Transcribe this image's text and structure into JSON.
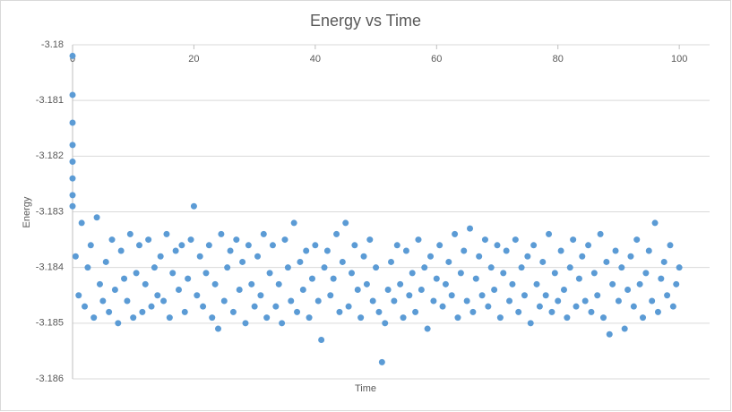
{
  "chart_data": {
    "type": "scatter",
    "title": "Energy vs Time",
    "x_label": "Time",
    "y_label": "Energy",
    "xlim": [
      0,
      105
    ],
    "xticks": [
      0,
      20,
      40,
      60,
      80,
      100
    ],
    "ylim": [
      -3.186,
      -3.18
    ],
    "yticks": [
      -3.18,
      -3.181,
      -3.182,
      -3.183,
      -3.184,
      -3.185,
      -3.186
    ],
    "grid": true,
    "series": [
      {
        "name": "Energy",
        "color": "#5b9bd5",
        "x": [
          0,
          0,
          0,
          0,
          0,
          0,
          0,
          0,
          0.5,
          1,
          1.5,
          2,
          2.5,
          3,
          3.5,
          4,
          4.5,
          5,
          5.5,
          6,
          6.5,
          7,
          7.5,
          8,
          8.5,
          9,
          9.5,
          10,
          10.5,
          11,
          11.5,
          12,
          12.5,
          13,
          13.5,
          14,
          14.5,
          15,
          15.5,
          16,
          16.5,
          17,
          17.5,
          18,
          18.5,
          19,
          19.5,
          20,
          20.5,
          21,
          21.5,
          22,
          22.5,
          23,
          23.5,
          24,
          24.5,
          25,
          25.5,
          26,
          26.5,
          27,
          27.5,
          28,
          28.5,
          29,
          29.5,
          30,
          30.5,
          31,
          31.5,
          32,
          32.5,
          33,
          33.5,
          34,
          34.5,
          35,
          35.5,
          36,
          36.5,
          37,
          37.5,
          38,
          38.5,
          39,
          39.5,
          40,
          40.5,
          41,
          41.5,
          42,
          42.5,
          43,
          43.5,
          44,
          44.5,
          45,
          45.5,
          46,
          46.5,
          47,
          47.5,
          48,
          48.5,
          49,
          49.5,
          50,
          50.5,
          51,
          51.5,
          52,
          52.5,
          53,
          53.5,
          54,
          54.5,
          55,
          55.5,
          56,
          56.5,
          57,
          57.5,
          58,
          58.5,
          59,
          59.5,
          60,
          60.5,
          61,
          61.5,
          62,
          62.5,
          63,
          63.5,
          64,
          64.5,
          65,
          65.5,
          66,
          66.5,
          67,
          67.5,
          68,
          68.5,
          69,
          69.5,
          70,
          70.5,
          71,
          71.5,
          72,
          72.5,
          73,
          73.5,
          74,
          74.5,
          75,
          75.5,
          76,
          76.5,
          77,
          77.5,
          78,
          78.5,
          79,
          79.5,
          80,
          80.5,
          81,
          81.5,
          82,
          82.5,
          83,
          83.5,
          84,
          84.5,
          85,
          85.5,
          86,
          86.5,
          87,
          87.5,
          88,
          88.5,
          89,
          89.5,
          90,
          90.5,
          91,
          91.5,
          92,
          92.5,
          93,
          93.5,
          94,
          94.5,
          95,
          95.5,
          96,
          96.5,
          97,
          97.5,
          98,
          98.5,
          99,
          99.5,
          100
        ],
        "values": [
          -3.1802,
          -3.1809,
          -3.1814,
          -3.1818,
          -3.1821,
          -3.1824,
          -3.1827,
          -3.1829,
          -3.1838,
          -3.1845,
          -3.1832,
          -3.1847,
          -3.184,
          -3.1836,
          -3.1849,
          -3.1831,
          -3.1843,
          -3.1846,
          -3.1839,
          -3.1848,
          -3.1835,
          -3.1844,
          -3.185,
          -3.1837,
          -3.1842,
          -3.1846,
          -3.1834,
          -3.1849,
          -3.1841,
          -3.1836,
          -3.1848,
          -3.1843,
          -3.1835,
          -3.1847,
          -3.184,
          -3.1845,
          -3.1838,
          -3.1846,
          -3.1834,
          -3.1849,
          -3.1841,
          -3.1837,
          -3.1844,
          -3.1836,
          -3.1848,
          -3.1842,
          -3.1835,
          -3.1829,
          -3.1845,
          -3.1838,
          -3.1847,
          -3.1841,
          -3.1836,
          -3.1849,
          -3.1843,
          -3.1851,
          -3.1834,
          -3.1846,
          -3.184,
          -3.1837,
          -3.1848,
          -3.1835,
          -3.1844,
          -3.1839,
          -3.185,
          -3.1836,
          -3.1843,
          -3.1847,
          -3.1838,
          -3.1845,
          -3.1834,
          -3.1849,
          -3.1841,
          -3.1836,
          -3.1847,
          -3.1843,
          -3.185,
          -3.1835,
          -3.184,
          -3.1846,
          -3.1832,
          -3.1848,
          -3.1839,
          -3.1844,
          -3.1837,
          -3.1849,
          -3.1842,
          -3.1836,
          -3.1846,
          -3.1853,
          -3.184,
          -3.1837,
          -3.1845,
          -3.1842,
          -3.1834,
          -3.1848,
          -3.1839,
          -3.1832,
          -3.1847,
          -3.1841,
          -3.1836,
          -3.1844,
          -3.1849,
          -3.1838,
          -3.1843,
          -3.1835,
          -3.1846,
          -3.184,
          -3.1848,
          -3.1857,
          -3.185,
          -3.1844,
          -3.1839,
          -3.1846,
          -3.1836,
          -3.1843,
          -3.1849,
          -3.1837,
          -3.1845,
          -3.1841,
          -3.1848,
          -3.1835,
          -3.1844,
          -3.184,
          -3.1851,
          -3.1838,
          -3.1846,
          -3.1842,
          -3.1836,
          -3.1847,
          -3.1843,
          -3.1839,
          -3.1845,
          -3.1834,
          -3.1849,
          -3.1841,
          -3.1837,
          -3.1846,
          -3.1833,
          -3.1848,
          -3.1842,
          -3.1838,
          -3.1845,
          -3.1835,
          -3.1847,
          -3.184,
          -3.1844,
          -3.1836,
          -3.1849,
          -3.1841,
          -3.1837,
          -3.1846,
          -3.1843,
          -3.1835,
          -3.1848,
          -3.184,
          -3.1845,
          -3.1838,
          -3.185,
          -3.1836,
          -3.1843,
          -3.1847,
          -3.1839,
          -3.1845,
          -3.1834,
          -3.1848,
          -3.1841,
          -3.1846,
          -3.1837,
          -3.1844,
          -3.1849,
          -3.184,
          -3.1835,
          -3.1847,
          -3.1842,
          -3.1838,
          -3.1846,
          -3.1836,
          -3.1848,
          -3.1841,
          -3.1845,
          -3.1834,
          -3.1849,
          -3.1839,
          -3.1852,
          -3.1843,
          -3.1837,
          -3.1846,
          -3.184,
          -3.1851,
          -3.1844,
          -3.1838,
          -3.1847,
          -3.1835,
          -3.1843,
          -3.1849,
          -3.1841,
          -3.1837,
          -3.1846,
          -3.1832,
          -3.1848,
          -3.1842,
          -3.1839,
          -3.1845,
          -3.1836,
          -3.1847,
          -3.1843,
          -3.184
        ]
      }
    ]
  }
}
